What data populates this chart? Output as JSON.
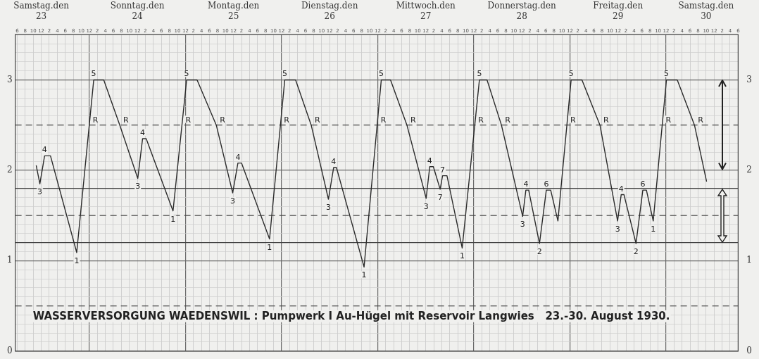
{
  "chart_data": {
    "type": "line",
    "annotations": [
      "WASSERVERSORGUNG WAEDENSWIL : Pumpwerk I Au-Hügel mit Reservoir Langwies   23.-30. August 1930.",
      {
        "text": "3",
        "x": "1930-08-23T11:39",
        "y": 1.85
      },
      {
        "text": "4",
        "x": "1930-08-23T12:50",
        "y": 2.16
      },
      {
        "text": "1",
        "x": "1930-08-23T20:51",
        "y": 1.09
      },
      {
        "text": "R",
        "x": "1930-08-24T00:00",
        "y": 2.5
      },
      {
        "text": "5",
        "x": "1930-08-24T01:06",
        "y": 3
      },
      {
        "text": "R",
        "x": "1930-08-24T07:36",
        "y": 2.5
      },
      {
        "text": "3",
        "x": "1930-08-24T12:06",
        "y": 1.91
      },
      {
        "text": "4",
        "x": "1930-08-24T13:18",
        "y": 2.35
      },
      {
        "text": "1",
        "x": "1930-08-24T20:54",
        "y": 1.55
      },
      {
        "text": "R",
        "x": "1930-08-24T23:08",
        "y": 2.5
      },
      {
        "text": "5",
        "x": "1930-08-25T00:18",
        "y": 3
      },
      {
        "text": "R",
        "x": "1930-08-25T07:42",
        "y": 2.5
      },
      {
        "text": "3",
        "x": "1930-08-25T11:48",
        "y": 1.75
      },
      {
        "text": "4",
        "x": "1930-08-25T13:06",
        "y": 2.08
      },
      {
        "text": "1",
        "x": "1930-08-25T21:00",
        "y": 1.24
      },
      {
        "text": "R",
        "x": "1930-08-25T23:43",
        "y": 2.5
      },
      {
        "text": "5",
        "x": "1930-08-26T00:48",
        "y": 3
      },
      {
        "text": "R",
        "x": "1930-08-26T07:24",
        "y": 2.5
      },
      {
        "text": "3",
        "x": "1930-08-26T11:42",
        "y": 1.68
      },
      {
        "text": "4",
        "x": "1930-08-26T13:00",
        "y": 2.03
      },
      {
        "text": "1",
        "x": "1930-08-26T20:36",
        "y": 0.93
      },
      {
        "text": "R",
        "x": "1930-08-26T23:52",
        "y": 2.5
      },
      {
        "text": "5",
        "x": "1930-08-27T00:54",
        "y": 3
      },
      {
        "text": "R",
        "x": "1930-08-27T07:18",
        "y": 2.5
      },
      {
        "text": "3",
        "x": "1930-08-27T12:06",
        "y": 1.69
      },
      {
        "text": "4",
        "x": "1930-08-27T13:00",
        "y": 2.04
      },
      {
        "text": "7",
        "x": "1930-08-27T15:36",
        "y": 1.79
      },
      {
        "text": "7",
        "x": "1930-08-27T16:12",
        "y": 1.94
      },
      {
        "text": "1",
        "x": "1930-08-27T21:06",
        "y": 1.14
      },
      {
        "text": "R",
        "x": "1930-08-28T00:14",
        "y": 2.5
      },
      {
        "text": "5",
        "x": "1930-08-28T01:24",
        "y": 3
      },
      {
        "text": "R",
        "x": "1930-08-28T06:54",
        "y": 2.5
      },
      {
        "text": "3",
        "x": "1930-08-28T12:12",
        "y": 1.49
      },
      {
        "text": "4",
        "x": "1930-08-28T13:00",
        "y": 1.78
      },
      {
        "text": "2",
        "x": "1930-08-28T16:24",
        "y": 1.19
      },
      {
        "text": "6",
        "x": "1930-08-28T18:06",
        "y": 1.78
      },
      {
        "text": "R",
        "x": "1930-08-28T23:14",
        "y": 2.5
      },
      {
        "text": "5",
        "x": "1930-08-29T00:18",
        "y": 3
      },
      {
        "text": "R",
        "x": "1930-08-29T07:30",
        "y": 2.5
      },
      {
        "text": "3",
        "x": "1930-08-29T11:54",
        "y": 1.44
      },
      {
        "text": "4",
        "x": "1930-08-29T12:48",
        "y": 1.73
      },
      {
        "text": "2",
        "x": "1930-08-29T16:30",
        "y": 1.19
      },
      {
        "text": "6",
        "x": "1930-08-29T18:12",
        "y": 1.78
      },
      {
        "text": "1",
        "x": "1930-08-29T20:48",
        "y": 1.44
      },
      {
        "text": "R",
        "x": "1930-08-29T23:02",
        "y": 2.5
      },
      {
        "text": "5",
        "x": "1930-08-30T00:06",
        "y": 3
      },
      {
        "text": "R",
        "x": "1930-08-30T07:06",
        "y": 2.5
      }
    ],
    "series": [
      {
        "color": "#2b2b2b",
        "x": [
          "1930-08-23T10:45",
          "1930-08-23T11:39",
          "1930-08-23T12:50",
          "1930-08-23T14:18",
          "1930-08-23T20:51",
          "1930-08-24T01:06",
          "1930-08-24T03:36",
          "1930-08-24T07:36",
          "1930-08-24T12:06",
          "1930-08-24T13:18",
          "1930-08-24T14:12",
          "1930-08-24T20:54",
          "1930-08-25T00:18",
          "1930-08-25T02:54",
          "1930-08-25T07:42",
          "1930-08-25T11:48",
          "1930-08-25T13:06",
          "1930-08-25T14:00",
          "1930-08-25T21:00",
          "1930-08-26T00:48",
          "1930-08-26T03:30",
          "1930-08-26T07:24",
          "1930-08-26T11:42",
          "1930-08-26T13:00",
          "1930-08-26T13:42",
          "1930-08-26T20:36",
          "1930-08-27T00:54",
          "1930-08-27T03:12",
          "1930-08-27T07:18",
          "1930-08-27T12:06",
          "1930-08-27T13:00",
          "1930-08-27T13:54",
          "1930-08-27T15:36",
          "1930-08-27T16:12",
          "1930-08-27T17:18",
          "1930-08-27T21:06",
          "1930-08-28T01:24",
          "1930-08-28T03:18",
          "1930-08-28T06:54",
          "1930-08-28T12:12",
          "1930-08-28T13:00",
          "1930-08-28T13:42",
          "1930-08-28T16:24",
          "1930-08-28T18:06",
          "1930-08-28T19:12",
          "1930-08-28T21:00",
          "1930-08-29T00:18",
          "1930-08-29T03:00",
          "1930-08-29T07:30",
          "1930-08-29T11:54",
          "1930-08-29T12:48",
          "1930-08-29T13:30",
          "1930-08-29T16:30",
          "1930-08-29T18:12",
          "1930-08-29T19:06",
          "1930-08-29T20:48",
          "1930-08-30T00:06",
          "1930-08-30T02:48",
          "1930-08-30T07:06",
          "1930-08-30T10:06"
        ],
        "values": [
          2.05,
          1.85,
          2.16,
          2.16,
          1.09,
          3,
          3,
          2.5,
          1.91,
          2.35,
          2.35,
          1.55,
          3,
          3,
          2.5,
          1.75,
          2.08,
          2.08,
          1.24,
          3,
          3,
          2.5,
          1.68,
          2.03,
          2.03,
          0.93,
          3,
          3,
          2.5,
          1.69,
          2.04,
          2.04,
          1.79,
          1.94,
          1.94,
          1.14,
          3,
          3,
          2.5,
          1.49,
          1.78,
          1.78,
          1.19,
          1.78,
          1.78,
          1.44,
          3,
          3,
          2.5,
          1.44,
          1.73,
          1.73,
          1.19,
          1.78,
          1.78,
          1.44,
          3,
          3,
          2.5,
          1.88
        ]
      }
    ],
    "xlim": [
      "1930-08-23T05:30",
      "1930-08-30T18:00"
    ],
    "xticks": [
      {
        "value": "1930-08-23T06:00",
        "label": "6"
      },
      {
        "value": "1930-08-23T08:00",
        "label": "8"
      },
      {
        "value": "1930-08-23T10:00",
        "label": "10"
      },
      {
        "value": "1930-08-23T12:00",
        "label": "12"
      },
      {
        "value": "1930-08-23T14:00",
        "label": "2"
      },
      {
        "value": "1930-08-23T16:00",
        "label": "4"
      },
      {
        "value": "1930-08-23T18:00",
        "label": "6"
      },
      {
        "value": "1930-08-23T20:00",
        "label": "8"
      },
      {
        "value": "1930-08-23T22:00",
        "label": "10"
      },
      {
        "value": "1930-08-24T00:00",
        "label": "12"
      },
      {
        "value": "1930-08-24T02:00",
        "label": "2"
      },
      {
        "value": "1930-08-24T04:00",
        "label": "4"
      },
      {
        "value": "1930-08-24T06:00",
        "label": "6"
      },
      {
        "value": "1930-08-24T08:00",
        "label": "8"
      },
      {
        "value": "1930-08-24T10:00",
        "label": "10"
      },
      {
        "value": "1930-08-24T12:00",
        "label": "12"
      },
      {
        "value": "1930-08-24T14:00",
        "label": "2"
      },
      {
        "value": "1930-08-24T16:00",
        "label": "4"
      },
      {
        "value": "1930-08-24T18:00",
        "label": "6"
      },
      {
        "value": "1930-08-24T20:00",
        "label": "8"
      },
      {
        "value": "1930-08-24T22:00",
        "label": "10"
      },
      {
        "value": "1930-08-25T00:00",
        "label": "12"
      },
      {
        "value": "1930-08-25T02:00",
        "label": "2"
      },
      {
        "value": "1930-08-25T04:00",
        "label": "4"
      },
      {
        "value": "1930-08-25T06:00",
        "label": "6"
      },
      {
        "value": "1930-08-25T08:00",
        "label": "8"
      },
      {
        "value": "1930-08-25T10:00",
        "label": "10"
      },
      {
        "value": "1930-08-25T12:00",
        "label": "12"
      },
      {
        "value": "1930-08-25T14:00",
        "label": "2"
      },
      {
        "value": "1930-08-25T16:00",
        "label": "4"
      },
      {
        "value": "1930-08-25T18:00",
        "label": "6"
      },
      {
        "value": "1930-08-25T20:00",
        "label": "8"
      },
      {
        "value": "1930-08-25T22:00",
        "label": "10"
      },
      {
        "value": "1930-08-26T00:00",
        "label": "12"
      },
      {
        "value": "1930-08-26T02:00",
        "label": "2"
      },
      {
        "value": "1930-08-26T04:00",
        "label": "4"
      },
      {
        "value": "1930-08-26T06:00",
        "label": "6"
      },
      {
        "value": "1930-08-26T08:00",
        "label": "8"
      },
      {
        "value": "1930-08-26T10:00",
        "label": "10"
      },
      {
        "value": "1930-08-26T12:00",
        "label": "12"
      },
      {
        "value": "1930-08-26T14:00",
        "label": "2"
      },
      {
        "value": "1930-08-26T16:00",
        "label": "4"
      },
      {
        "value": "1930-08-26T18:00",
        "label": "6"
      },
      {
        "value": "1930-08-26T20:00",
        "label": "8"
      },
      {
        "value": "1930-08-26T22:00",
        "label": "10"
      },
      {
        "value": "1930-08-27T00:00",
        "label": "12"
      },
      {
        "value": "1930-08-27T02:00",
        "label": "2"
      },
      {
        "value": "1930-08-27T04:00",
        "label": "4"
      },
      {
        "value": "1930-08-27T06:00",
        "label": "6"
      },
      {
        "value": "1930-08-27T08:00",
        "label": "8"
      },
      {
        "value": "1930-08-27T10:00",
        "label": "10"
      },
      {
        "value": "1930-08-27T12:00",
        "label": "12"
      },
      {
        "value": "1930-08-27T14:00",
        "label": "2"
      },
      {
        "value": "1930-08-27T16:00",
        "label": "4"
      },
      {
        "value": "1930-08-27T18:00",
        "label": "6"
      },
      {
        "value": "1930-08-27T20:00",
        "label": "8"
      },
      {
        "value": "1930-08-27T22:00",
        "label": "10"
      },
      {
        "value": "1930-08-28T00:00",
        "label": "12"
      },
      {
        "value": "1930-08-28T02:00",
        "label": "2"
      },
      {
        "value": "1930-08-28T04:00",
        "label": "4"
      },
      {
        "value": "1930-08-28T06:00",
        "label": "6"
      },
      {
        "value": "1930-08-28T08:00",
        "label": "8"
      },
      {
        "value": "1930-08-28T10:00",
        "label": "10"
      },
      {
        "value": "1930-08-28T12:00",
        "label": "12"
      },
      {
        "value": "1930-08-28T14:00",
        "label": "2"
      },
      {
        "value": "1930-08-28T16:00",
        "label": "4"
      },
      {
        "value": "1930-08-28T18:00",
        "label": "6"
      },
      {
        "value": "1930-08-28T20:00",
        "label": "8"
      },
      {
        "value": "1930-08-28T22:00",
        "label": "10"
      },
      {
        "value": "1930-08-29T00:00",
        "label": "12"
      },
      {
        "value": "1930-08-29T02:00",
        "label": "2"
      },
      {
        "value": "1930-08-29T04:00",
        "label": "4"
      },
      {
        "value": "1930-08-29T06:00",
        "label": "6"
      },
      {
        "value": "1930-08-29T08:00",
        "label": "8"
      },
      {
        "value": "1930-08-29T10:00",
        "label": "10"
      },
      {
        "value": "1930-08-29T12:00",
        "label": "12"
      },
      {
        "value": "1930-08-29T14:00",
        "label": "2"
      },
      {
        "value": "1930-08-29T16:00",
        "label": "4"
      },
      {
        "value": "1930-08-29T18:00",
        "label": "6"
      },
      {
        "value": "1930-08-29T20:00",
        "label": "8"
      },
      {
        "value": "1930-08-29T22:00",
        "label": "10"
      },
      {
        "value": "1930-08-30T00:00",
        "label": "12"
      },
      {
        "value": "1930-08-30T02:00",
        "label": "2"
      },
      {
        "value": "1930-08-30T04:00",
        "label": "4"
      },
      {
        "value": "1930-08-30T06:00",
        "label": "6"
      },
      {
        "value": "1930-08-30T08:00",
        "label": "8"
      },
      {
        "value": "1930-08-30T10:00",
        "label": "10"
      },
      {
        "value": "1930-08-30T12:00",
        "label": "12"
      },
      {
        "value": "1930-08-30T14:00",
        "label": "2"
      },
      {
        "value": "1930-08-30T16:00",
        "label": "4"
      },
      {
        "value": "1930-08-30T18:00",
        "label": "6"
      }
    ],
    "x2lim": [
      "1930-08-23T05:30",
      "1930-08-30T18:00"
    ],
    "x2ticks": [
      {
        "value": "1930-08-23T12:00",
        "label": "Samstag.den\n23"
      },
      {
        "value": "1930-08-24T12:00",
        "label": "Sonntag.den\n24"
      },
      {
        "value": "1930-08-25T12:00",
        "label": "Montag.den\n25"
      },
      {
        "value": "1930-08-26T12:00",
        "label": "Dienstag.den\n26"
      },
      {
        "value": "1930-08-27T12:00",
        "label": "Mittwoch.den\n27"
      },
      {
        "value": "1930-08-28T12:00",
        "label": "Donnerstag.den\n28"
      },
      {
        "value": "1930-08-29T12:00",
        "label": "Freitag.den\n29"
      },
      {
        "value": "1930-08-30T10:00",
        "label": "Samstag.den\n30"
      }
    ],
    "ylim": [
      0,
      3.5
    ],
    "yticks": [
      0,
      {
        "value": 0.1,
        "label": null
      },
      {
        "value": 0.2,
        "label": null
      },
      {
        "value": 0.3,
        "label": null
      },
      {
        "value": 0.4,
        "label": null
      },
      {
        "value": 0.6,
        "label": null
      },
      {
        "value": 0.7,
        "label": null
      },
      {
        "value": 0.8,
        "label": null
      },
      {
        "value": 0.9,
        "label": null
      },
      1,
      {
        "value": 1.1,
        "label": null
      },
      {
        "value": 1.3,
        "label": null
      },
      {
        "value": 1.4,
        "label": null
      },
      {
        "value": 1.6,
        "label": null
      },
      {
        "value": 1.7,
        "label": null
      },
      {
        "value": 1.9,
        "label": null
      },
      2,
      {
        "value": 2.1,
        "label": null
      },
      {
        "value": 2.2,
        "label": null
      },
      {
        "value": 2.3,
        "label": null
      },
      {
        "value": 2.4,
        "label": null
      },
      {
        "value": 2.6,
        "label": null
      },
      {
        "value": 2.7,
        "label": null
      },
      {
        "value": 2.8,
        "label": null
      },
      {
        "value": 2.9,
        "label": null
      },
      3,
      {
        "value": 3.1,
        "label": null
      },
      {
        "value": 3.2,
        "label": null
      },
      {
        "value": 3.3,
        "label": null
      },
      {
        "value": 3.4,
        "label": null
      },
      {
        "value": 3.5,
        "label": null
      }
    ],
    "y2lim": [
      0,
      3.5
    ],
    "y2ticks": [
      0,
      1,
      2,
      3
    ],
    "ref_lines": [
      {
        "axis": "y",
        "value": 2.5,
        "line_style": "dashed",
        "color": "#444444"
      },
      {
        "axis": "y",
        "value": 1.5,
        "line_style": "dashed",
        "color": "#444444"
      },
      {
        "axis": "y",
        "value": 0.5,
        "line_style": "dashed",
        "color": "#444444"
      },
      {
        "axis": "y",
        "value": 1.8,
        "line_style": "solid",
        "color": "#444444"
      },
      {
        "axis": "y",
        "value": 1.2,
        "line_style": "solid",
        "color": "#444444"
      }
    ],
    "grid": true
  }
}
